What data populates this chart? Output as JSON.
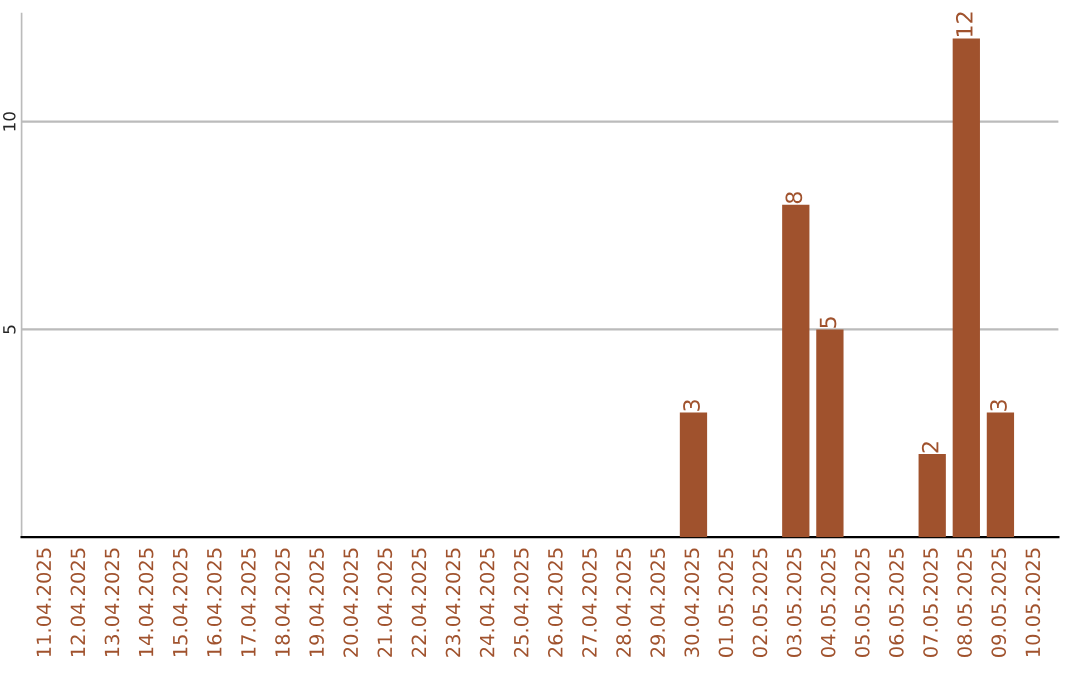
{
  "chart_data": {
    "type": "bar",
    "categories": [
      "11.04.2025",
      "12.04.2025",
      "13.04.2025",
      "14.04.2025",
      "15.04.2025",
      "16.04.2025",
      "17.04.2025",
      "18.04.2025",
      "19.04.2025",
      "20.04.2025",
      "21.04.2025",
      "22.04.2025",
      "23.04.2025",
      "24.04.2025",
      "25.04.2025",
      "26.04.2025",
      "27.04.2025",
      "28.04.2025",
      "29.04.2025",
      "30.04.2025",
      "01.05.2025",
      "02.05.2025",
      "03.05.2025",
      "04.05.2025",
      "05.05.2025",
      "06.05.2025",
      "07.05.2025",
      "08.05.2025",
      "09.05.2025",
      "10.05.2025"
    ],
    "values": [
      0,
      0,
      0,
      0,
      0,
      0,
      0,
      0,
      0,
      0,
      0,
      0,
      0,
      0,
      0,
      0,
      0,
      0,
      0,
      3,
      0,
      0,
      8,
      5,
      0,
      0,
      2,
      12,
      3,
      0
    ],
    "value_labels": [
      null,
      null,
      null,
      null,
      null,
      null,
      null,
      null,
      null,
      null,
      null,
      null,
      null,
      null,
      null,
      null,
      null,
      null,
      null,
      "3",
      null,
      null,
      "8",
      "5",
      null,
      null,
      "2",
      "12",
      "3",
      null
    ],
    "color": "#a0522d",
    "ylim": [
      0,
      12.6
    ],
    "yticks": [
      5,
      10
    ],
    "grid": "y"
  }
}
